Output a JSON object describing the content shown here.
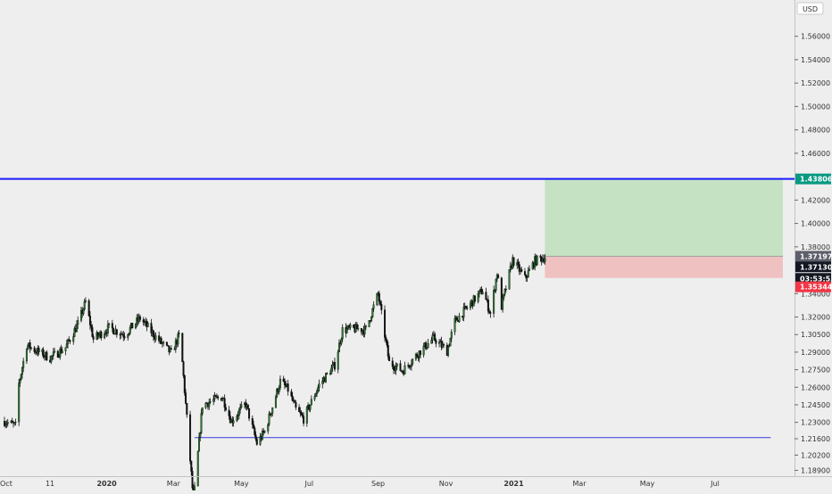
{
  "currency_label": "USD",
  "chart_data": {
    "type": "candlestick",
    "title": "",
    "xlabel": "",
    "ylabel": "",
    "currency": "USD",
    "ylim": [
      1.184,
      1.591
    ],
    "y_ticks": [
      "1.58000",
      "1.56000",
      "1.54000",
      "1.52000",
      "1.50000",
      "1.48000",
      "1.46000",
      "1.42000",
      "1.40000",
      "1.38000",
      "1.34000",
      "1.32000",
      "1.30500",
      "1.29000",
      "1.27500",
      "1.26000",
      "1.24500",
      "1.23000",
      "1.21600",
      "1.20200",
      "1.18900"
    ],
    "x_ticks": [
      "Oct",
      "11",
      "2020",
      "Mar",
      "May",
      "Jul",
      "Sep",
      "Nov",
      "2021",
      "Mar",
      "May",
      "Jul"
    ],
    "x_bold_ticks": [
      "2020",
      "2021"
    ],
    "date_range": [
      "2019-10-01",
      "2021-08-31"
    ],
    "last_candle_date": "2021-01-29",
    "price_labels": [
      {
        "name": "target",
        "value": "1.43806",
        "color": "#089981"
      },
      {
        "name": "prior-close",
        "value": "1.37197",
        "color": "#5d606b"
      },
      {
        "name": "last-price",
        "value": "1.37130",
        "color": "#131722"
      },
      {
        "name": "countdown",
        "value": "03:53:53",
        "color": "#131722"
      },
      {
        "name": "stop",
        "value": "1.35344",
        "color": "#f23645"
      }
    ],
    "horizontal_lines": [
      {
        "name": "resistance-line",
        "value": 1.43806,
        "color": "#1a1aff"
      },
      {
        "name": "support-line",
        "value": 1.217,
        "from": "2020-03-20",
        "to": "2021-08-20",
        "color": "#3a3adf"
      }
    ],
    "position": {
      "entry": 1.37197,
      "target": 1.43806,
      "stop": 1.35344,
      "from": "2021-01-29",
      "to": "2021-08-31",
      "profit_color": "#c5e2c3",
      "loss_color": "#f0c1c1"
    },
    "price_path": [
      [
        "2019-10-01",
        1.231
      ],
      [
        "2019-10-11",
        1.227
      ],
      [
        "2019-10-14",
        1.263
      ],
      [
        "2019-10-21",
        1.296
      ],
      [
        "2019-10-28",
        1.292
      ],
      [
        "2019-11-11",
        1.285
      ],
      [
        "2019-11-25",
        1.294
      ],
      [
        "2019-12-06",
        1.314
      ],
      [
        "2019-12-13",
        1.333
      ],
      [
        "2019-12-20",
        1.301
      ],
      [
        "2020-01-03",
        1.311
      ],
      [
        "2020-01-17",
        1.305
      ],
      [
        "2020-01-31",
        1.319
      ],
      [
        "2020-02-14",
        1.303
      ],
      [
        "2020-02-28",
        1.289
      ],
      [
        "2020-03-06",
        1.304
      ],
      [
        "2020-03-09",
        1.281
      ],
      [
        "2020-03-19",
        1.162
      ],
      [
        "2020-03-27",
        1.245
      ],
      [
        "2020-04-14",
        1.252
      ],
      [
        "2020-04-22",
        1.231
      ],
      [
        "2020-05-05",
        1.246
      ],
      [
        "2020-05-15",
        1.212
      ],
      [
        "2020-05-22",
        1.222
      ],
      [
        "2020-06-05",
        1.265
      ],
      [
        "2020-06-12",
        1.258
      ],
      [
        "2020-06-19",
        1.241
      ],
      [
        "2020-06-26",
        1.233
      ],
      [
        "2020-07-10",
        1.262
      ],
      [
        "2020-07-24",
        1.279
      ],
      [
        "2020-07-31",
        1.309
      ],
      [
        "2020-08-14",
        1.31
      ],
      [
        "2020-08-21",
        1.309
      ],
      [
        "2020-09-01",
        1.34
      ],
      [
        "2020-09-11",
        1.281
      ],
      [
        "2020-09-23",
        1.274
      ],
      [
        "2020-10-09",
        1.291
      ],
      [
        "2020-10-21",
        1.302
      ],
      [
        "2020-11-02",
        1.291
      ],
      [
        "2020-11-09",
        1.316
      ],
      [
        "2020-11-20",
        1.328
      ],
      [
        "2020-12-04",
        1.343
      ],
      [
        "2020-12-11",
        1.323
      ],
      [
        "2020-12-17",
        1.358
      ],
      [
        "2020-12-21",
        1.329
      ],
      [
        "2020-12-31",
        1.369
      ],
      [
        "2021-01-11",
        1.353
      ],
      [
        "2021-01-20",
        1.368
      ],
      [
        "2021-01-29",
        1.3713
      ]
    ]
  }
}
